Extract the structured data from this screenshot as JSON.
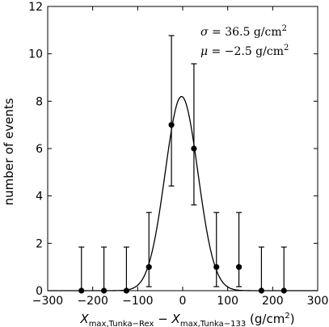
{
  "chart_data": {
    "type": "scatter",
    "title": "",
    "xlabel_parts": {
      "x1": "X",
      "sub1": "max,Tunka−Rex",
      "minus": " − ",
      "x2": "X",
      "sub2": "max,Tunka−133",
      "unit": " (g/cm",
      "unit_sup": "2",
      "unit_close": ")"
    },
    "ylabel": "number of events",
    "xlim": [
      -300,
      300
    ],
    "ylim": [
      0,
      12
    ],
    "xticks": [
      -300,
      -200,
      -100,
      0,
      100,
      200,
      300
    ],
    "yticks": [
      0,
      2,
      4,
      6,
      8,
      10,
      12
    ],
    "annotations": {
      "sigma": {
        "symbol": "σ",
        "text": " = 36.5 g/cm",
        "sup": "2"
      },
      "mu": {
        "symbol": "μ",
        "text": " = −2.5 g/cm",
        "sup": "2"
      }
    },
    "series": [
      {
        "type": "errorbar",
        "x": [
          -225,
          -175,
          -125,
          -75,
          -25,
          25,
          75,
          125,
          175,
          225
        ],
        "y": [
          0,
          0,
          0,
          1,
          7,
          6,
          1,
          1,
          0,
          0
        ],
        "yerr_low": [
          0,
          0,
          0,
          0.83,
          2.58,
          2.38,
          0.83,
          0.83,
          0,
          0
        ],
        "yerr_high": [
          1.84,
          1.84,
          1.84,
          2.3,
          3.77,
          3.58,
          2.3,
          2.3,
          1.84,
          1.84
        ]
      },
      {
        "type": "gaussian-fit",
        "mu": -2.5,
        "sigma": 36.5,
        "amplitude": 8.2
      }
    ],
    "grid": false,
    "legend": false
  }
}
